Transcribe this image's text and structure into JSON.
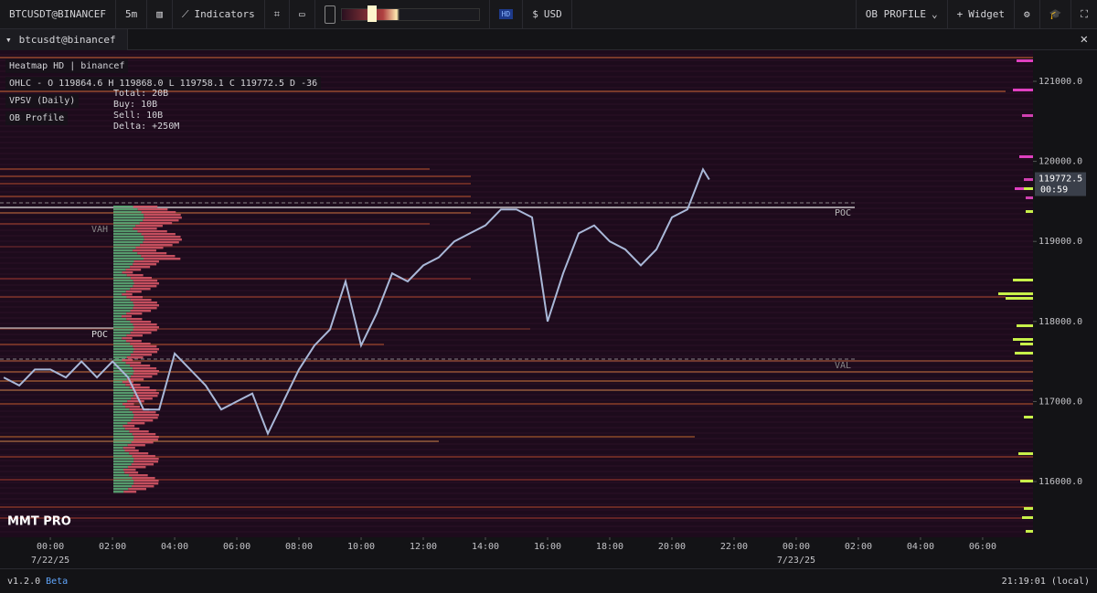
{
  "toolbar": {
    "symbol": "BTCUSDT@BINANCEF",
    "interval": "5m",
    "indicators": "Indicators",
    "hd": "HD",
    "currency": "USD",
    "ob_profile": "OB PROFILE",
    "widget": "Widget"
  },
  "tab": {
    "title": "btcusdt@binancef"
  },
  "legend": {
    "heatmap": "Heatmap HD | binancef",
    "ohlc": "OHLC - O 119864.6 H 119868.0 L 119758.1 C 119772.5 D -36",
    "vpsv": "VPSV (Daily)",
    "ob_profile": "OB Profile"
  },
  "tooltip": [
    "Total: 20B",
    "Buy: 10B",
    "Sell: 10B",
    "Delta: +250M"
  ],
  "annotations": {
    "vah": "VAH",
    "poc_left": "POC",
    "poc_right": "POC",
    "val": "VAL",
    "brand": "MMT PRO"
  },
  "chart_data": {
    "type": "line",
    "x": [
      -1.5,
      -1,
      -0.5,
      0,
      0.5,
      1,
      1.5,
      2,
      2.5,
      3,
      3.5,
      4,
      4.5,
      5,
      5.5,
      6,
      6.5,
      7,
      7.5,
      8,
      8.5,
      9,
      9.5,
      10,
      10.5,
      11,
      11.5,
      12,
      12.5,
      13,
      13.5,
      14,
      14.5,
      15,
      15.5,
      16,
      16.5,
      17,
      17.5,
      18,
      18.5,
      19,
      19.5,
      20,
      20.5,
      21,
      21.2
    ],
    "series": [
      {
        "color": "#a9b8d8",
        "values": [
          117300,
          117200,
          117400,
          117400,
          117300,
          117500,
          117300,
          117500,
          117300,
          116900,
          116900,
          117600,
          117400,
          117200,
          116900,
          117000,
          117100,
          116600,
          117000,
          117400,
          117700,
          117900,
          118500,
          117700,
          118100,
          118600,
          118500,
          118700,
          118800,
          119000,
          119100,
          119200,
          119400,
          119400,
          119300,
          118000,
          118600,
          119100,
          119200,
          119000,
          118900,
          118700,
          118900,
          119300,
          119400,
          119900,
          119772.5
        ]
      }
    ],
    "xlim": [
      -1.62,
      31.62
    ],
    "ylim": [
      115304,
      121388
    ],
    "yticks": [
      {
        "value": 121000,
        "label": "121000.0"
      },
      {
        "value": 120000,
        "label": "120000.0"
      },
      {
        "value": 119000,
        "label": "119000.0"
      },
      {
        "value": 118000,
        "label": "118000.0"
      },
      {
        "value": 117000,
        "label": "117000.0"
      },
      {
        "value": 116000,
        "label": "116000.0"
      }
    ],
    "xticks": [
      {
        "value": 0,
        "label": "00:00"
      },
      {
        "value": 2,
        "label": "02:00"
      },
      {
        "value": 4,
        "label": "04:00"
      },
      {
        "value": 6,
        "label": "06:00"
      },
      {
        "value": 8,
        "label": "08:00"
      },
      {
        "value": 10,
        "label": "10:00"
      },
      {
        "value": 12,
        "label": "12:00"
      },
      {
        "value": 14,
        "label": "14:00"
      },
      {
        "value": 16,
        "label": "16:00"
      },
      {
        "value": 18,
        "label": "18:00"
      },
      {
        "value": 20,
        "label": "20:00"
      },
      {
        "value": 22,
        "label": "22:00"
      },
      {
        "value": 24,
        "label": "00:00"
      },
      {
        "value": 26,
        "label": "02:00"
      },
      {
        "value": 28,
        "label": "04:00"
      },
      {
        "value": 30,
        "label": "06:00"
      }
    ],
    "dates": [
      {
        "value": 0,
        "label": "7/22/25"
      },
      {
        "value": 24,
        "label": "7/23/25"
      }
    ],
    "last_price": {
      "value": 119772.5,
      "label": "119772.5"
    },
    "countdown": "00:59"
  },
  "status": {
    "version": "v1.2.0",
    "beta": "Beta",
    "clock": "21:19:01 (local)"
  }
}
